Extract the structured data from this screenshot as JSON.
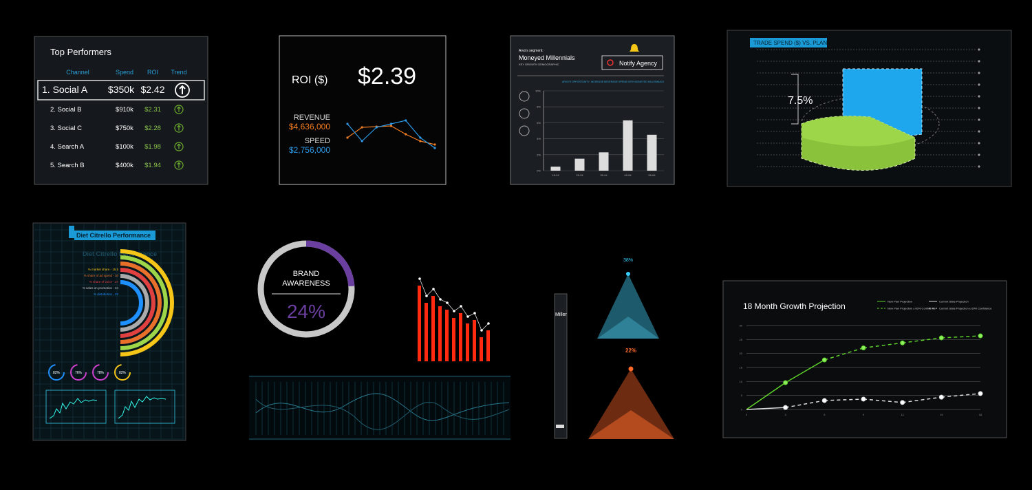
{
  "top_performers": {
    "title": "Top Performers",
    "columns": [
      "Channel",
      "Spend",
      "ROI",
      "Trend"
    ],
    "rows": [
      [
        "1. Social A",
        "$350k",
        "$2.42"
      ],
      [
        "2. Social B",
        "$910k",
        "$2.31"
      ],
      [
        "3. Social C",
        "$750k",
        "$2.28"
      ],
      [
        "4. Search A",
        "$100k",
        "$1.98"
      ],
      [
        "5. Search B",
        "$400k",
        "$1.94"
      ]
    ]
  },
  "roi": {
    "label": "ROI ($)",
    "value": "$2.39",
    "revenue_label": "REVENUE",
    "revenue": "$4,636,000",
    "speed_label": "SPEED",
    "speed": "$2,756,000",
    "revenue_line": [
      15,
      30,
      31,
      32,
      20,
      10,
      5
    ],
    "speed_line": [
      35,
      10,
      30,
      35,
      40,
      15,
      0
    ]
  },
  "segment": {
    "kicker": "Arvo's segment:",
    "title": "Moneyed Millennials",
    "subtitle": "KEY GROWTH DEMOGRAPHIC",
    "button": "Notify Agency",
    "opportunity": "ARVO'S OPPORTUNITY: INCREASE BEVERAGE SPEND WITH MONEYED MILLENNIALS",
    "chart": {
      "type": "bar",
      "categories": [
        "18-24",
        "25-34",
        "35-44",
        "45-54",
        "55-64"
      ],
      "values": [
        0.5,
        1.5,
        2.3,
        6.3,
        4.5
      ],
      "color": "#dddddd",
      "ylim": [
        0,
        10
      ],
      "yticks": [
        {
          "value": 0,
          "label": "0%"
        },
        {
          "value": 2,
          "label": "2%"
        },
        {
          "value": 4,
          "label": "4%"
        },
        {
          "value": 6,
          "label": "6%"
        },
        {
          "value": 8,
          "label": "8%"
        },
        {
          "value": 10,
          "label": "10%"
        }
      ]
    }
  },
  "trade_spend": {
    "title": "TRADE SPEND ($) VS. PLAN:",
    "annotation": "7.5%"
  },
  "diet_citrello": {
    "title": "Diet Citrello Performance",
    "metrics": [
      "% market share - 15.5",
      "% share of ad spend - 30",
      "% share of voice - 27",
      "% sales on promotion - 24",
      "% distribution - 22"
    ],
    "gauges": [
      "82%",
      "76%",
      "78%",
      "82%"
    ]
  },
  "brand_awareness": {
    "title_lines": [
      "BRAND",
      "AWARENESS"
    ],
    "value": 24,
    "value_label": "24%"
  },
  "red_bars": {
    "values": [
      110,
      85,
      95,
      80,
      75,
      63,
      70,
      55,
      60,
      35,
      45
    ]
  },
  "sliver": {
    "text": "Millenni"
  },
  "pyramids": {
    "top": "38%",
    "bottom": "22%"
  },
  "growth": {
    "title": "18 Month Growth Projection",
    "legend_extra": [
      "New Plan Projection ± 60% Confidence",
      "Current State Projection ± 60% Confidence"
    ],
    "chart": {
      "type": "line",
      "x": [
        0,
        3,
        6,
        9,
        12,
        15,
        18
      ],
      "xlim": [
        0,
        18
      ],
      "ylim": [
        0,
        30
      ],
      "yticks": [
        0,
        5,
        10,
        15,
        20,
        25,
        30
      ],
      "series": [
        {
          "name": "New Plan Projection",
          "color": "#5fd32a",
          "values": [
            0,
            9.6,
            17.7,
            22,
            23.8,
            25.6,
            26.3
          ]
        },
        {
          "name": "Current State Projection",
          "color": "#dddddd",
          "values": [
            0,
            0.7,
            3.2,
            3.7,
            2.5,
            4.4,
            5.7
          ]
        }
      ]
    }
  }
}
